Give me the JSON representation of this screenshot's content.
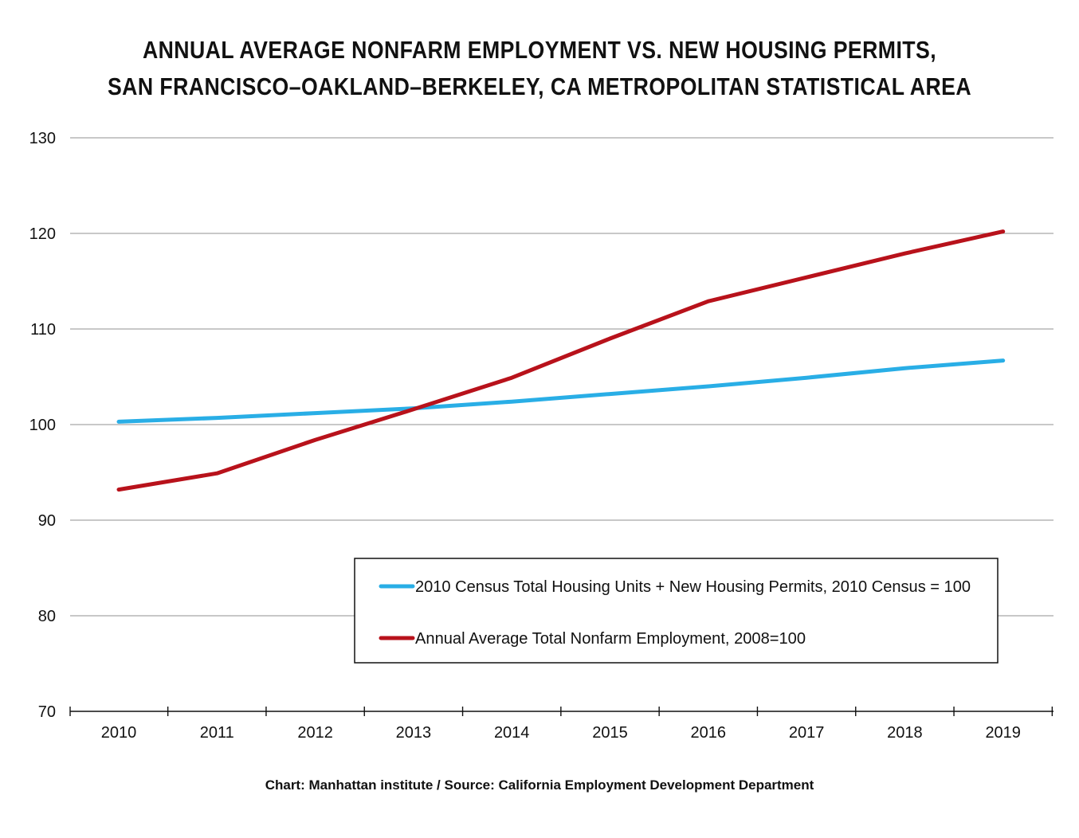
{
  "title_lines": [
    "ANNUAL AVERAGE NONFARM EMPLOYMENT VS. NEW HOUSING PERMITS,",
    "SAN FRANCISCO–OAKLAND–BERKELEY, CA METROPOLITAN STATISTICAL AREA"
  ],
  "source_text": "Chart: Manhattan institute  /  Source: California Employment Development Department",
  "chart_data": {
    "type": "line",
    "title": "ANNUAL AVERAGE NONFARM EMPLOYMENT VS. NEW HOUSING PERMITS, SAN FRANCISCO–OAKLAND–BERKELEY, CA METROPOLITAN STATISTICAL AREA",
    "x": [
      "2010",
      "2011",
      "2012",
      "2013",
      "2014",
      "2015",
      "2016",
      "2017",
      "2018",
      "2019"
    ],
    "ylim": [
      70,
      130
    ],
    "yticks": [
      70,
      80,
      90,
      100,
      110,
      120,
      130
    ],
    "grid": true,
    "legend_position": "lower-right",
    "series": [
      {
        "name": "2010 Census Total Housing Units + New Housing Permits, 2010 Census = 100",
        "color": "#29aee6",
        "values": [
          100.3,
          100.7,
          101.2,
          101.7,
          102.4,
          103.2,
          104.0,
          104.9,
          105.9,
          106.7
        ]
      },
      {
        "name": "Annual Average Total Nonfarm Employment, 2008=100",
        "color": "#b8121b",
        "values": [
          93.2,
          94.9,
          98.4,
          101.6,
          104.9,
          109.0,
          112.9,
          115.4,
          117.9,
          120.2
        ]
      }
    ]
  }
}
